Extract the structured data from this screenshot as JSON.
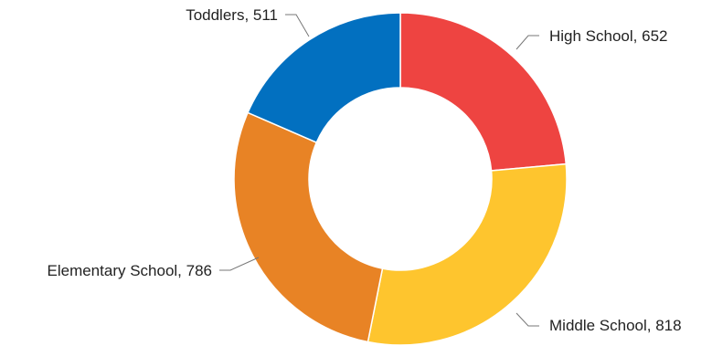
{
  "chart_data": {
    "type": "pie",
    "donut": true,
    "title": "",
    "slices": [
      {
        "label": "High School",
        "value": 652,
        "color": "#EE4441"
      },
      {
        "label": "Middle School",
        "value": 818,
        "color": "#FEC52E"
      },
      {
        "label": "Elementary School",
        "value": 786,
        "color": "#E88325"
      },
      {
        "label": "Toddlers",
        "value": 511,
        "color": "#0270C0"
      }
    ],
    "legend": "none",
    "labels": "outside-with-leaders"
  }
}
